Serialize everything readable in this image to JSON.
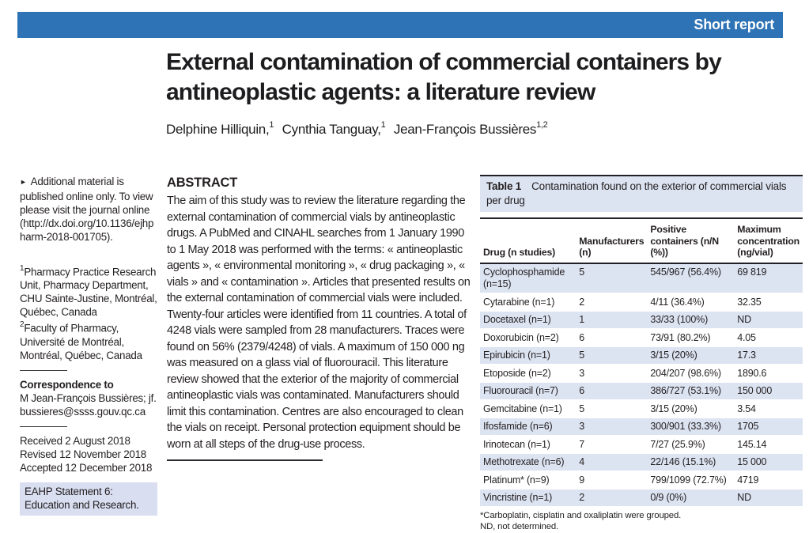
{
  "banner": {
    "label": "Short report"
  },
  "colors": {
    "banner_blue": "#2d73b5",
    "table_shade": "#dce3f1",
    "eahp_box": "#d9def1",
    "rule_dark": "#1f1f26"
  },
  "article": {
    "title": "External contamination of commercial containers by antineoplastic agents: a literature review",
    "authors": [
      {
        "name": "Delphine Hilliquin,",
        "sup": "1"
      },
      {
        "name": "Cynthia Tanguay,",
        "sup": "1"
      },
      {
        "name": "Jean-François Bussières",
        "sup": "1,2"
      }
    ]
  },
  "sidebar": {
    "arrow_icon": "►",
    "additional_material": {
      "prefix": "Additional material is published online only. To view please visit the journal online (",
      "url": "http://dx.doi.org/10.1136/ejhpharm-2018-001705",
      "suffix": ")."
    },
    "affiliations": [
      {
        "sup": "1",
        "text": "Pharmacy Practice Research Unit, Pharmacy Department, CHU Sainte-Justine, Montréal, Québec, Canada"
      },
      {
        "sup": "2",
        "text": "Faculty of Pharmacy, Université de Montréal, Montréal, Québec, Canada"
      }
    ],
    "correspondence": {
      "label": "Correspondence to",
      "name": "M Jean-François Bussières; ",
      "email": "jf.bussieres@ssss.gouv.qc.ca"
    },
    "dates": [
      "Received 2 August 2018",
      "Revised 12 November 2018",
      "Accepted 12 December 2018"
    ],
    "eahp_statement": "EAHP Statement 6: Education and Research."
  },
  "abstract": {
    "heading": "ABSTRACT",
    "text": "The aim of this study was to review the literature regarding the external contamination of commercial vials by antineoplastic drugs. A PubMed and CINAHL searches from 1 January 1990 to 1 May 2018 was performed with the terms: « antineoplastic agents », « environmental monitoring », « drug packaging », « vials » and « contamination ». Articles that presented results on the external contamination of commercial vials were included. Twenty-four articles were identified from 11 countries. A total of 4248 vials were sampled from 28 manufacturers. Traces were found on 56% (2379/4248) of vials. A maximum of 150 000 ng was measured on a glass vial of fluorouracil. This literature review showed that the exterior of the majority of commercial antineoplastic vials was contaminated. Manufacturers should limit this contamination. Centres are also encouraged to clean the vials on receipt. Personal protection equipment should be worn at all steps of the drug-use process."
  },
  "table": {
    "caption_label": "Table 1",
    "caption_text": "Contamination found on the exterior of commercial vials per drug",
    "columns": [
      "Drug (n studies)",
      "Manufacturers (n)",
      "Positive containers (n/N (%))",
      "Maximum concentration (ng/vial)"
    ],
    "rows": [
      [
        "Cyclophosphamide (n=15)",
        "5",
        "545/967 (56.4%)",
        "69 819"
      ],
      [
        "Cytarabine (n=1)",
        "2",
        "4/11 (36.4%)",
        "32.35"
      ],
      [
        "Docetaxel (n=1)",
        "1",
        "33/33 (100%)",
        "ND"
      ],
      [
        "Doxorubicin (n=2)",
        "6",
        "73/91 (80.2%)",
        "4.05"
      ],
      [
        "Epirubicin (n=1)",
        "5",
        "3/15 (20%)",
        "17.3"
      ],
      [
        "Etoposide (n=2)",
        "3",
        "204/207 (98.6%)",
        "1890.6"
      ],
      [
        "Fluorouracil (n=7)",
        "6",
        "386/727 (53.1%)",
        "150 000"
      ],
      [
        "Gemcitabine (n=1)",
        "5",
        "3/15 (20%)",
        "3.54"
      ],
      [
        "Ifosfamide (n=6)",
        "3",
        "300/901 (33.3%)",
        "1705"
      ],
      [
        "Irinotecan (n=1)",
        "7",
        "7/27 (25.9%)",
        "145.14"
      ],
      [
        "Methotrexate (n=6)",
        "4",
        "22/146 (15.1%)",
        "15 000"
      ],
      [
        "Platinum* (n=9)",
        "9",
        "799/1099 (72.7%)",
        "4719"
      ],
      [
        "Vincristine (n=1)",
        "2",
        "0/9 (0%)",
        "ND"
      ]
    ],
    "footnotes": [
      "*Carboplatin, cisplatin and oxaliplatin were grouped.",
      "ND, not determined."
    ]
  }
}
